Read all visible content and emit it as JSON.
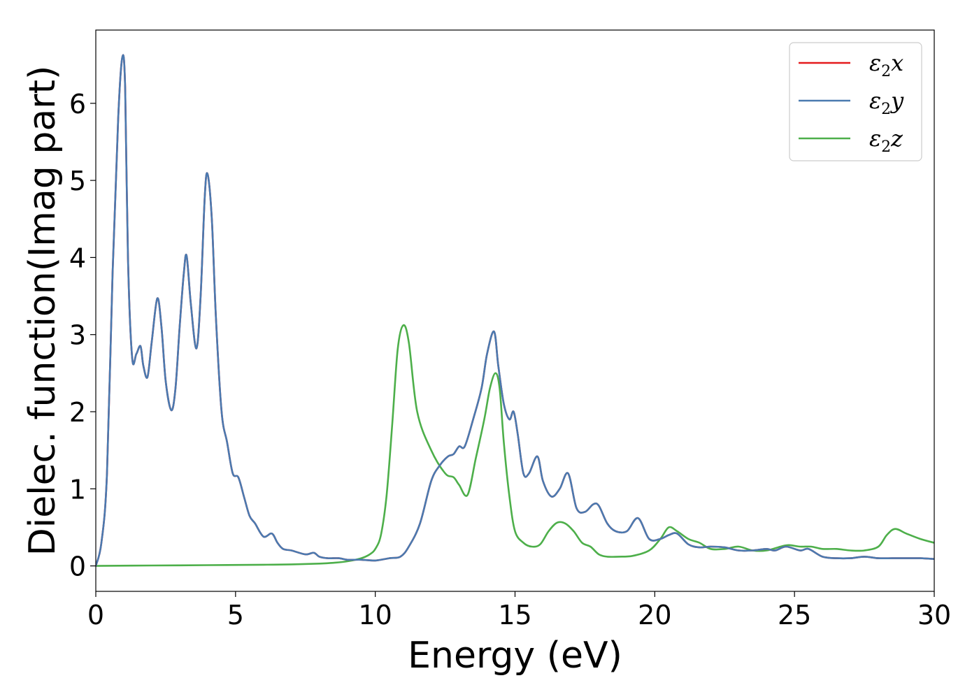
{
  "chart_data": {
    "type": "line",
    "title": "",
    "xlabel": "Energy (eV)",
    "ylabel": "Dielec. function(Imag part)",
    "xlim": [
      0,
      30
    ],
    "ylim": [
      -0.33,
      6.95
    ],
    "xticks": [
      0,
      5,
      10,
      15,
      20,
      25,
      30
    ],
    "yticks": [
      0,
      1,
      2,
      3,
      4,
      5,
      6
    ],
    "grid": false,
    "legend": {
      "position": "top-right"
    },
    "series": [
      {
        "name": "ε2x",
        "symbol": "ε",
        "subscript": "2",
        "axis": "x",
        "color": "#e41a1c",
        "x": [
          0,
          0.2,
          0.4,
          0.6,
          0.8,
          0.95,
          1.05,
          1.15,
          1.3,
          1.45,
          1.6,
          1.7,
          1.85,
          2.0,
          2.2,
          2.35,
          2.5,
          2.7,
          2.85,
          3.0,
          3.15,
          3.25,
          3.4,
          3.6,
          3.75,
          3.9,
          4.0,
          4.15,
          4.3,
          4.5,
          4.7,
          4.9,
          5.1,
          5.3,
          5.5,
          5.7,
          6.0,
          6.3,
          6.5,
          6.7,
          7.0,
          7.5,
          7.8,
          8.0,
          8.3,
          8.7,
          9.0,
          9.5,
          10.0,
          10.5,
          10.9,
          11.2,
          11.6,
          12.0,
          12.3,
          12.6,
          12.8,
          13.0,
          13.2,
          13.5,
          13.8,
          14.0,
          14.25,
          14.4,
          14.6,
          14.8,
          14.95,
          15.1,
          15.3,
          15.5,
          15.8,
          16.0,
          16.3,
          16.6,
          16.9,
          17.2,
          17.5,
          17.8,
          18.0,
          18.3,
          18.6,
          19.0,
          19.4,
          19.8,
          20.2,
          20.5,
          20.8,
          21.2,
          21.6,
          22.0,
          22.5,
          23.0,
          23.5,
          24.0,
          24.3,
          24.7,
          25.2,
          25.5,
          26.0,
          26.5,
          27.0,
          27.5,
          28.0,
          28.5,
          29.0,
          29.5,
          30.0
        ],
        "y": [
          0,
          0.3,
          1.2,
          3.8,
          5.8,
          6.6,
          6.2,
          4.0,
          2.7,
          2.75,
          2.85,
          2.6,
          2.45,
          2.9,
          3.47,
          3.1,
          2.4,
          2.02,
          2.3,
          3.1,
          3.8,
          4.02,
          3.4,
          2.82,
          3.5,
          4.8,
          5.08,
          4.5,
          3.2,
          2.0,
          1.6,
          1.2,
          1.15,
          0.9,
          0.65,
          0.55,
          0.38,
          0.42,
          0.3,
          0.22,
          0.2,
          0.15,
          0.17,
          0.12,
          0.1,
          0.1,
          0.08,
          0.08,
          0.07,
          0.1,
          0.12,
          0.25,
          0.55,
          1.1,
          1.3,
          1.42,
          1.45,
          1.55,
          1.55,
          1.9,
          2.3,
          2.75,
          3.04,
          2.6,
          2.1,
          1.9,
          2.0,
          1.7,
          1.2,
          1.2,
          1.42,
          1.1,
          0.9,
          1.0,
          1.2,
          0.75,
          0.7,
          0.8,
          0.78,
          0.55,
          0.45,
          0.45,
          0.62,
          0.35,
          0.35,
          0.4,
          0.42,
          0.28,
          0.24,
          0.25,
          0.24,
          0.2,
          0.2,
          0.22,
          0.2,
          0.25,
          0.2,
          0.22,
          0.12,
          0.1,
          0.1,
          0.12,
          0.1,
          0.1,
          0.1,
          0.1,
          0.09
        ]
      },
      {
        "name": "ε2y",
        "symbol": "ε",
        "subscript": "2",
        "axis": "y",
        "color": "#4a7ab0",
        "x": [
          0,
          0.2,
          0.4,
          0.6,
          0.8,
          0.95,
          1.05,
          1.15,
          1.3,
          1.45,
          1.6,
          1.7,
          1.85,
          2.0,
          2.2,
          2.35,
          2.5,
          2.7,
          2.85,
          3.0,
          3.15,
          3.25,
          3.4,
          3.6,
          3.75,
          3.9,
          4.0,
          4.15,
          4.3,
          4.5,
          4.7,
          4.9,
          5.1,
          5.3,
          5.5,
          5.7,
          6.0,
          6.3,
          6.5,
          6.7,
          7.0,
          7.5,
          7.8,
          8.0,
          8.3,
          8.7,
          9.0,
          9.5,
          10.0,
          10.5,
          10.9,
          11.2,
          11.6,
          12.0,
          12.3,
          12.6,
          12.8,
          13.0,
          13.2,
          13.5,
          13.8,
          14.0,
          14.25,
          14.4,
          14.6,
          14.8,
          14.95,
          15.1,
          15.3,
          15.5,
          15.8,
          16.0,
          16.3,
          16.6,
          16.9,
          17.2,
          17.5,
          17.8,
          18.0,
          18.3,
          18.6,
          19.0,
          19.4,
          19.8,
          20.2,
          20.5,
          20.8,
          21.2,
          21.6,
          22.0,
          22.5,
          23.0,
          23.5,
          24.0,
          24.3,
          24.7,
          25.2,
          25.5,
          26.0,
          26.5,
          27.0,
          27.5,
          28.0,
          28.5,
          29.0,
          29.5,
          30.0
        ],
        "y": [
          0,
          0.3,
          1.2,
          3.8,
          5.8,
          6.6,
          6.2,
          4.0,
          2.7,
          2.75,
          2.85,
          2.6,
          2.45,
          2.9,
          3.47,
          3.1,
          2.4,
          2.02,
          2.3,
          3.1,
          3.8,
          4.02,
          3.4,
          2.82,
          3.5,
          4.8,
          5.08,
          4.5,
          3.2,
          2.0,
          1.6,
          1.2,
          1.15,
          0.9,
          0.65,
          0.55,
          0.38,
          0.42,
          0.3,
          0.22,
          0.2,
          0.15,
          0.17,
          0.12,
          0.1,
          0.1,
          0.08,
          0.08,
          0.07,
          0.1,
          0.12,
          0.25,
          0.55,
          1.1,
          1.3,
          1.42,
          1.45,
          1.55,
          1.55,
          1.9,
          2.3,
          2.75,
          3.04,
          2.6,
          2.1,
          1.9,
          2.0,
          1.7,
          1.2,
          1.2,
          1.42,
          1.1,
          0.9,
          1.0,
          1.2,
          0.75,
          0.7,
          0.8,
          0.78,
          0.55,
          0.45,
          0.45,
          0.62,
          0.35,
          0.35,
          0.4,
          0.42,
          0.28,
          0.24,
          0.25,
          0.24,
          0.2,
          0.2,
          0.22,
          0.2,
          0.25,
          0.2,
          0.22,
          0.12,
          0.1,
          0.1,
          0.12,
          0.1,
          0.1,
          0.1,
          0.1,
          0.09
        ]
      },
      {
        "name": "ε2z",
        "symbol": "ε",
        "subscript": "2",
        "axis": "z",
        "color": "#4daf4a",
        "x": [
          0,
          2,
          4,
          6,
          7,
          8,
          8.5,
          9,
          9.5,
          9.8,
          10.0,
          10.2,
          10.4,
          10.6,
          10.8,
          11.0,
          11.2,
          11.5,
          12.0,
          12.5,
          12.8,
          13.0,
          13.3,
          13.6,
          13.9,
          14.1,
          14.3,
          14.45,
          14.6,
          14.8,
          15.0,
          15.3,
          15.6,
          15.9,
          16.2,
          16.5,
          16.8,
          17.1,
          17.4,
          17.7,
          18.0,
          18.3,
          18.7,
          19.2,
          19.8,
          20.2,
          20.5,
          20.8,
          21.2,
          21.6,
          22.0,
          22.5,
          23.0,
          23.5,
          24.0,
          24.5,
          24.8,
          25.2,
          25.6,
          26.0,
          26.5,
          27.0,
          27.5,
          28.0,
          28.3,
          28.6,
          29.0,
          29.5,
          30.0
        ],
        "y": [
          0,
          0.005,
          0.01,
          0.015,
          0.02,
          0.03,
          0.04,
          0.06,
          0.1,
          0.15,
          0.22,
          0.4,
          0.9,
          1.8,
          2.8,
          3.12,
          2.9,
          2.0,
          1.5,
          1.2,
          1.15,
          1.05,
          0.92,
          1.4,
          1.9,
          2.3,
          2.5,
          2.3,
          1.6,
          0.9,
          0.45,
          0.3,
          0.25,
          0.28,
          0.45,
          0.56,
          0.55,
          0.45,
          0.3,
          0.25,
          0.15,
          0.12,
          0.12,
          0.13,
          0.2,
          0.35,
          0.5,
          0.45,
          0.35,
          0.3,
          0.22,
          0.22,
          0.25,
          0.2,
          0.2,
          0.25,
          0.27,
          0.25,
          0.25,
          0.22,
          0.22,
          0.2,
          0.2,
          0.25,
          0.4,
          0.48,
          0.42,
          0.35,
          0.3
        ]
      }
    ]
  }
}
